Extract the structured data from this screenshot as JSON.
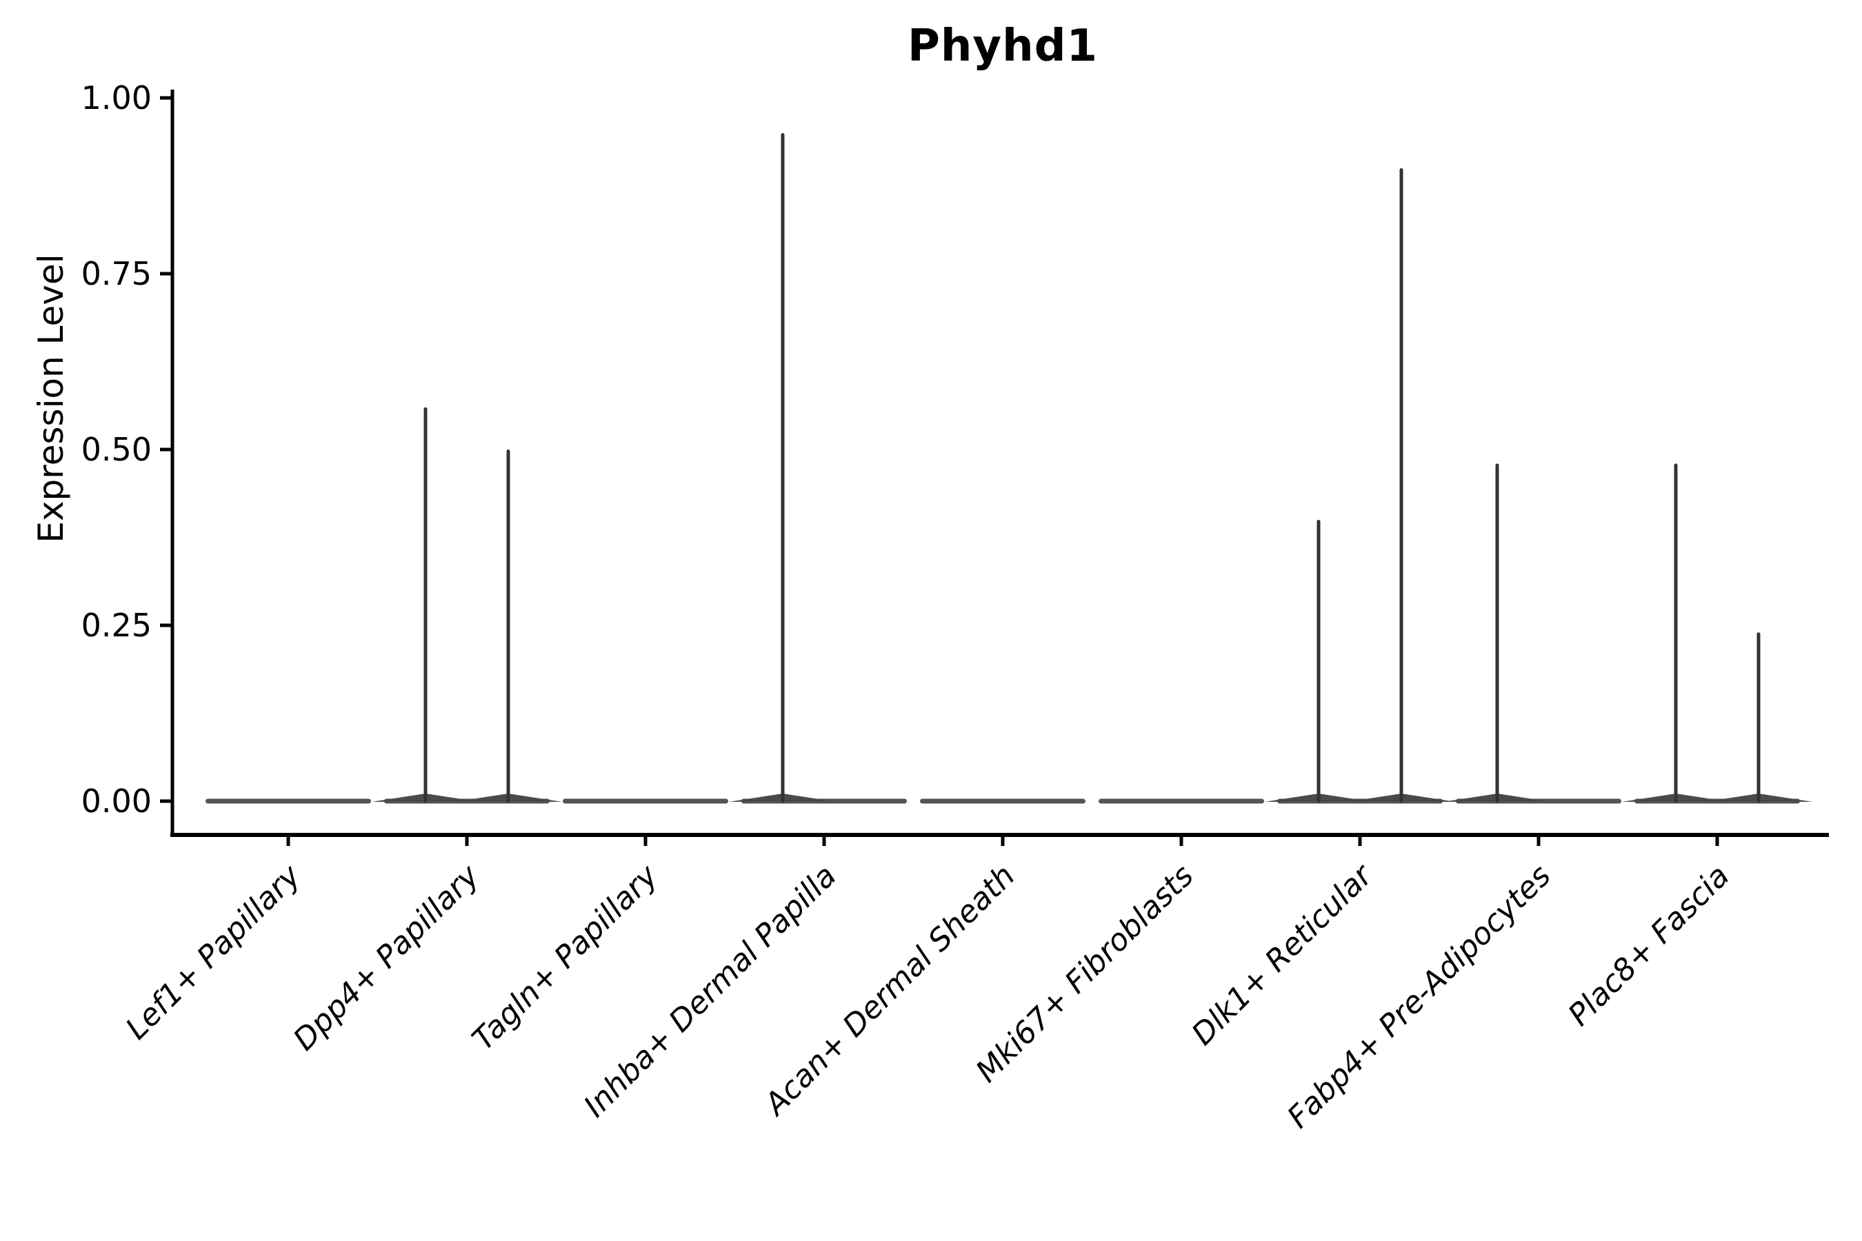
{
  "title": "Phyhd1",
  "style": {
    "background": "#ffffff",
    "axis_color": "#000000",
    "text_color": "#000000",
    "violin_body_color": "#555555",
    "violin_mound_color": "#4a4a4a",
    "violin_spike_color": "#333333"
  },
  "chart_data": {
    "type": "violin",
    "title": "Phyhd1",
    "xlabel": "",
    "ylabel": "Expression Level",
    "ylim": [
      0,
      1
    ],
    "yticks": [
      0,
      0.25,
      0.5,
      0.75,
      1.0
    ],
    "ytick_labels": [
      "0.00",
      "0.25",
      "0.50",
      "0.75",
      "1.00"
    ],
    "grid": false,
    "legend": false,
    "categories": [
      "Lef1+ Papillary",
      "Dpp4+ Papillary",
      "Tagln+ Papillary",
      "Inhba+ Dermal Papilla",
      "Acan+ Dermal Sheath",
      "Mki67+ Fibroblasts",
      "Dlk1+ Reticular",
      "Fabp4+ Pre-Adipocytes",
      "Plac8+ Fascia"
    ],
    "baseline_value": 0,
    "violins": [
      {
        "category": "Lef1+ Papillary",
        "spikes": []
      },
      {
        "category": "Dpp4+ Papillary",
        "spikes": [
          {
            "side": "left",
            "value": 0.56
          },
          {
            "side": "right",
            "value": 0.5
          }
        ]
      },
      {
        "category": "Tagln+ Papillary",
        "spikes": []
      },
      {
        "category": "Inhba+ Dermal Papilla",
        "spikes": [
          {
            "side": "left",
            "value": 0.95
          }
        ]
      },
      {
        "category": "Acan+ Dermal Sheath",
        "spikes": []
      },
      {
        "category": "Mki67+ Fibroblasts",
        "spikes": []
      },
      {
        "category": "Dlk1+ Reticular",
        "spikes": [
          {
            "side": "left",
            "value": 0.4
          },
          {
            "side": "right",
            "value": 0.9
          }
        ]
      },
      {
        "category": "Fabp4+ Pre-Adipocytes",
        "spikes": [
          {
            "side": "left",
            "value": 0.48
          }
        ]
      },
      {
        "category": "Plac8+ Fascia",
        "spikes": [
          {
            "side": "left",
            "value": 0.48
          },
          {
            "side": "right",
            "value": 0.24
          }
        ]
      }
    ]
  }
}
